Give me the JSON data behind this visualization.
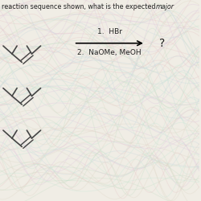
{
  "title_text": "reaction sequence shown, what is the expected ",
  "title_italic": "major",
  "step1": "1.  HBr",
  "step2": "2.  NaOMe, MeOH",
  "question_mark": "?",
  "bg_color": "#f0ede5",
  "line_color": "#444444",
  "text_color": "#222222",
  "wave_colors": [
    "#c8dfc8",
    "#dfc8df",
    "#dfd8c8",
    "#c8d8df",
    "#e8c8c8",
    "#c8e8d8"
  ],
  "wave_alpha": 0.35
}
